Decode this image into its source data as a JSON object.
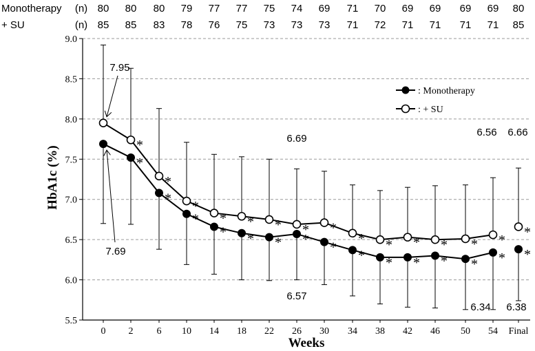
{
  "chart_data": {
    "type": "line",
    "title": "",
    "xlabel": "Weeks",
    "ylabel": "HbA1c (%)",
    "ylim": [
      5.5,
      9.0
    ],
    "y_ticks": [
      "5.5",
      "6.0",
      "6.5",
      "7.0",
      "7.5",
      "8.0",
      "8.5",
      "9.0"
    ],
    "grid": "horizontal dashed",
    "categories": [
      "0",
      "2",
      "6",
      "10",
      "14",
      "18",
      "22",
      "26",
      "30",
      "34",
      "38",
      "42",
      "46",
      "50",
      "54",
      "Final"
    ],
    "series": [
      {
        "name": ": Monotherapy",
        "marker": "filled circle",
        "color": "#000000",
        "values": [
          7.69,
          7.52,
          7.08,
          6.82,
          6.66,
          6.58,
          6.53,
          6.57,
          6.47,
          6.37,
          6.28,
          6.28,
          6.3,
          6.26,
          6.34,
          6.38
        ],
        "error_lower": [
          6.7,
          6.69,
          6.38,
          6.19,
          6.07,
          6.0,
          5.99,
          6.0,
          5.94,
          5.8,
          5.7,
          5.66,
          5.65,
          5.63,
          5.63,
          5.74
        ],
        "significance": [
          "",
          "*",
          "*",
          "*",
          "*",
          "*",
          "*",
          "*",
          "*",
          "*",
          "*",
          "*",
          "*",
          "*",
          "*",
          "*"
        ]
      },
      {
        "name": ": + SU",
        "marker": "open circle",
        "color": "#000000",
        "values": [
          7.95,
          7.74,
          7.29,
          6.98,
          6.83,
          6.79,
          6.75,
          6.69,
          6.71,
          6.58,
          6.5,
          6.53,
          6.5,
          6.51,
          6.56,
          6.66
        ],
        "error_upper": [
          8.92,
          8.63,
          8.13,
          7.71,
          7.56,
          7.53,
          7.5,
          7.38,
          7.35,
          7.18,
          7.11,
          7.15,
          7.17,
          7.18,
          7.27,
          7.39
        ],
        "significance": [
          "",
          "*",
          "*",
          "*",
          "*",
          "*",
          "*",
          "*",
          "*",
          "*",
          "*",
          "*",
          "*",
          "*",
          "*",
          "*"
        ]
      }
    ],
    "annotations": [
      {
        "text": "7.95",
        "series": ": + SU",
        "category": "0"
      },
      {
        "text": "7.69",
        "series": ": Monotherapy",
        "category": "0"
      },
      {
        "text": "6.69",
        "series": ": + SU",
        "category": "26"
      },
      {
        "text": "6.57",
        "series": ": Monotherapy",
        "category": "26"
      },
      {
        "text": "6.56",
        "series": ": + SU",
        "category": "54"
      },
      {
        "text": "6.34",
        "series": ": Monotherapy",
        "category": "54"
      },
      {
        "text": "6.66",
        "series": ": + SU",
        "category": "Final"
      },
      {
        "text": "6.38",
        "series": ": Monotherapy",
        "category": "Final"
      }
    ],
    "n_table": {
      "rows": [
        {
          "label": "Monotherapy",
          "unit": "(n)",
          "values": [
            "80",
            "80",
            "80",
            "79",
            "77",
            "77",
            "75",
            "74",
            "69",
            "71",
            "70",
            "69",
            "69",
            "69",
            "69",
            "80"
          ]
        },
        {
          "label": "+ SU",
          "unit": "(n)",
          "values": [
            "85",
            "85",
            "83",
            "78",
            "76",
            "75",
            "73",
            "73",
            "73",
            "71",
            "72",
            "71",
            "71",
            "71",
            "71",
            "85"
          ]
        }
      ]
    },
    "legend_position": "top-right"
  }
}
